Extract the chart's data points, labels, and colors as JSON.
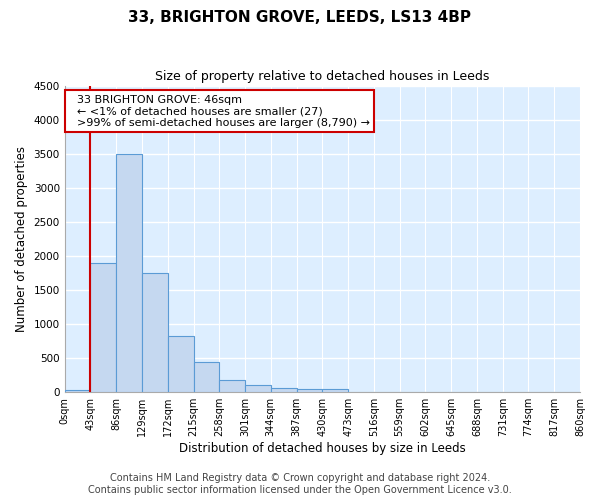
{
  "title": "33, BRIGHTON GROVE, LEEDS, LS13 4BP",
  "subtitle": "Size of property relative to detached houses in Leeds",
  "xlabel": "Distribution of detached houses by size in Leeds",
  "ylabel": "Number of detached properties",
  "footer_line1": "Contains HM Land Registry data © Crown copyright and database right 2024.",
  "footer_line2": "Contains public sector information licensed under the Open Government Licence v3.0.",
  "bar_values": [
    27,
    1900,
    3500,
    1750,
    830,
    450,
    175,
    100,
    60,
    50,
    40,
    0,
    0,
    0,
    0,
    0,
    0,
    0,
    0,
    0
  ],
  "bin_edges": [
    0,
    43,
    86,
    129,
    172,
    215,
    258,
    301,
    344,
    387,
    430,
    473,
    516,
    559,
    602,
    645,
    688,
    731,
    774,
    817,
    860
  ],
  "tick_labels": [
    "0sqm",
    "43sqm",
    "86sqm",
    "129sqm",
    "172sqm",
    "215sqm",
    "258sqm",
    "301sqm",
    "344sqm",
    "387sqm",
    "430sqm",
    "473sqm",
    "516sqm",
    "559sqm",
    "602sqm",
    "645sqm",
    "688sqm",
    "731sqm",
    "774sqm",
    "817sqm",
    "860sqm"
  ],
  "ylim": [
    0,
    4500
  ],
  "bar_color": "#c5d8f0",
  "bar_edge_color": "#5b9bd5",
  "red_line_x": 43,
  "annotation_text": "  33 BRIGHTON GROVE: 46sqm\n  ← <1% of detached houses are smaller (27)\n  >99% of semi-detached houses are larger (8,790) →",
  "annotation_box_color": "#ffffff",
  "annotation_edge_color": "#cc0000",
  "figure_background": "#ffffff",
  "axes_background": "#ddeeff",
  "grid_color": "#ffffff",
  "title_fontsize": 11,
  "subtitle_fontsize": 9,
  "tick_fontsize": 7,
  "ylabel_fontsize": 8.5,
  "xlabel_fontsize": 8.5,
  "footer_fontsize": 7,
  "annotation_fontsize": 8
}
